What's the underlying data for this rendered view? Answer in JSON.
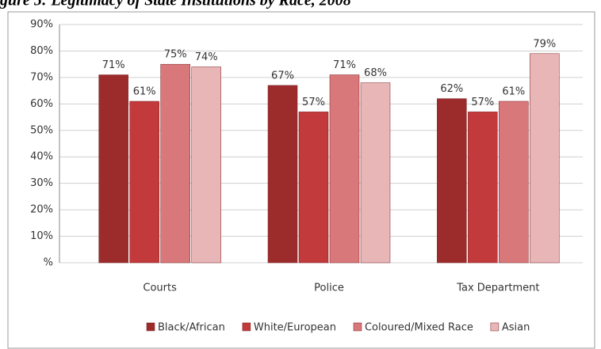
{
  "chart_data": {
    "type": "bar",
    "title": "gure 5: Legitimacy of State Institutions by Race, 2008",
    "categories": [
      "Courts",
      "Police",
      "Tax Department"
    ],
    "series": [
      {
        "name": "Black/African",
        "color": "#9c2b2c",
        "values": [
          71,
          67,
          62
        ],
        "value_labels": [
          "71%",
          "67%",
          "62%"
        ]
      },
      {
        "name": "White/European",
        "color": "#c23a3b",
        "values": [
          61,
          57,
          57
        ],
        "value_labels": [
          "61%",
          "57%",
          "57%"
        ]
      },
      {
        "name": "Coloured/Mixed Race",
        "color": "#d9787b",
        "values": [
          75,
          71,
          61
        ],
        "value_labels": [
          "75%",
          "71%",
          "61%"
        ]
      },
      {
        "name": "Asian",
        "color": "#e9b6b8",
        "values": [
          74,
          68,
          79
        ],
        "value_labels": [
          "74%",
          "68%",
          "79%"
        ]
      }
    ],
    "ylim": [
      0,
      90
    ],
    "yticks": [
      {
        "value": 0,
        "label": "%"
      },
      {
        "value": 10,
        "label": "10%"
      },
      {
        "value": 20,
        "label": "20%"
      },
      {
        "value": 30,
        "label": "30%"
      },
      {
        "value": 40,
        "label": "40%"
      },
      {
        "value": 50,
        "label": "50%"
      },
      {
        "value": 60,
        "label": "60%"
      },
      {
        "value": 70,
        "label": "70%"
      },
      {
        "value": 80,
        "label": "80%"
      },
      {
        "value": 90,
        "label": "90%"
      }
    ],
    "grid": true,
    "legend": "bottom"
  }
}
